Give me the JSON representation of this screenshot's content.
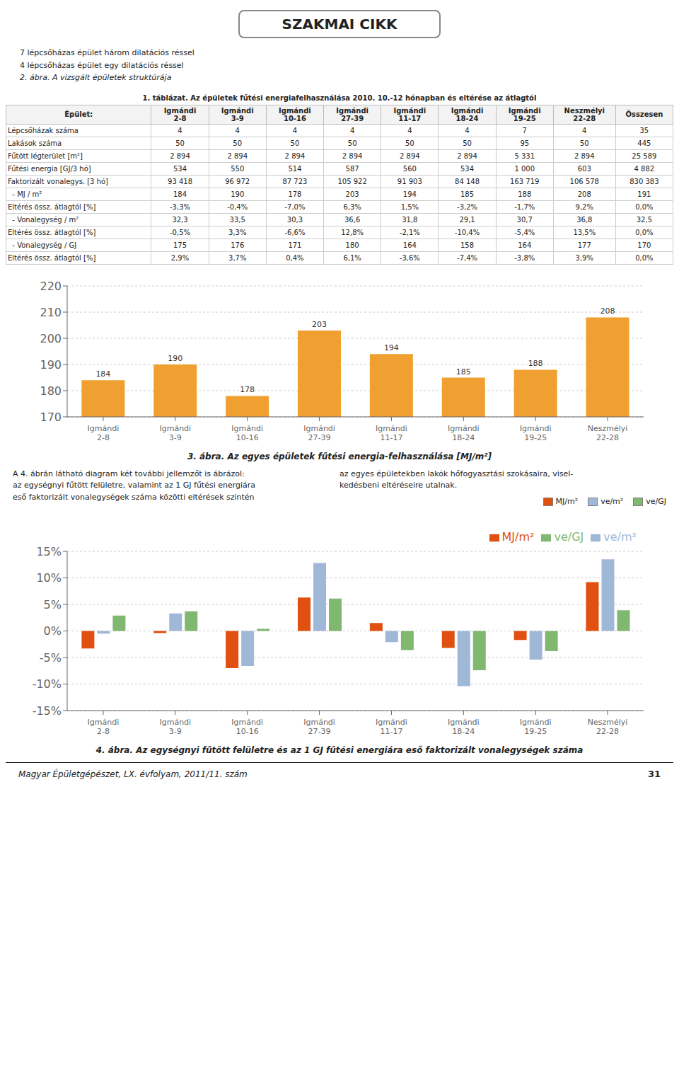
{
  "title": "SZAKMAI CIKK",
  "annotations": [
    "7 lépcsőházas épület három dilatációs réssel",
    "4 lépcsőházas épület egy dilatációs réssel",
    "2. ábra. A vizsgált épületek struktúrája",
    "A 4. ábrán látható diagram két további jellemzőt is ábrázol:\naz egységnyi fűtött felületre, valamint az 1 GJ fűtési energiára\neső faktorizált vonalegységek száma közötti eltérések szintén",
    "az egyes épületekben lakók hőfogyasztási szokásaira, visel-\nkedésbeni eltéréseire utalnak.",
    "Magyar Épületgépészet, LX. évfolyam, 2011/11. szám",
    "31"
  ],
  "chart_data": [
    {
      "type": "table",
      "title": "1. táblázat. Az épületek fűtési energiafelhasználása 2010. 10.-12 hónapban és eltérése az átlagtól",
      "columns": [
        "Épület:",
        "Igmándi\n2-8",
        "Igmándi\n3-9",
        "Igmándi\n10-16",
        "Igmándi\n27-39",
        "Igmándi\n11-17",
        "Igmándi\n18-24",
        "Igmándi\n19-25",
        "Neszmélyi\n22-28",
        "Összesen"
      ],
      "rows": [
        [
          "Lépcsőházak száma",
          "4",
          "4",
          "4",
          "4",
          "4",
          "4",
          "7",
          "4",
          "35"
        ],
        [
          "Lakások száma",
          "50",
          "50",
          "50",
          "50",
          "50",
          "50",
          "95",
          "50",
          "445"
        ],
        [
          "Fűtött légterület [m²]",
          "2 894",
          "2 894",
          "2 894",
          "2 894",
          "2 894",
          "2 894",
          "5 331",
          "2 894",
          "25 589"
        ],
        [
          "Fűtési energia [GJ/3 hó]",
          "534",
          "550",
          "514",
          "587",
          "560",
          "534",
          "1 000",
          "603",
          "4 882"
        ],
        [
          "Faktorizált vonalegys. [3 hó]",
          "93 418",
          "96 972",
          "87 723",
          "105 922",
          "91 903",
          "84 148",
          "163 719",
          "106 578",
          "830 383"
        ],
        [
          "  - MJ / m²",
          "184",
          "190",
          "178",
          "203",
          "194",
          "185",
          "188",
          "208",
          "191"
        ],
        [
          "Eltérés össz. átlagtól [%]",
          "-3,3%",
          "-0,4%",
          "-7,0%",
          "6,3%",
          "1,5%",
          "-3,2%",
          "-1,7%",
          "9,2%",
          "0,0%"
        ],
        [
          "  - Vonalegység / m²",
          "32,3",
          "33,5",
          "30,3",
          "36,6",
          "31,8",
          "29,1",
          "30,7",
          "36,8",
          "32,5"
        ],
        [
          "Eltérés össz. átlagtól [%]",
          "-0,5%",
          "3,3%",
          "-6,6%",
          "12,8%",
          "-2,1%",
          "-10,4%",
          "-5,4%",
          "13,5%",
          "0,0%"
        ],
        [
          "  - Vonalegység / GJ",
          "175",
          "176",
          "171",
          "180",
          "164",
          "158",
          "164",
          "177",
          "170"
        ],
        [
          "Eltérés össz. átlagtól [%]",
          "2,9%",
          "3,7%",
          "0,4%",
          "6,1%",
          "-3,6%",
          "-7,4%",
          "-3,8%",
          "3,9%",
          "0,0%"
        ]
      ]
    },
    {
      "type": "bar",
      "title": "3. ábra. Az egyes épületek fűtési energia-felhasználása [MJ/m²]",
      "categories": [
        "Igmándi\n2-8",
        "Igmándi\n3-9",
        "Igmándi\n10-16",
        "Igmándi\n27-39",
        "Igmándi\n11-17",
        "Igmándi\n18-24",
        "Igmándi\n19-25",
        "Neszmélyi\n22-28"
      ],
      "values": [
        184,
        190,
        178,
        203,
        194,
        185,
        188,
        208
      ],
      "color": "#f0a030",
      "ylim": [
        170,
        220
      ],
      "yticks": [
        170,
        180,
        190,
        200,
        210,
        220
      ],
      "grid": true,
      "data_labels": true
    },
    {
      "type": "bar",
      "title": "4. ábra. Az egységnyi fűtött felületre és az 1 GJ fűtési energiára eső faktorizált vonalegységek száma",
      "categories": [
        "Igmándi\n2-8",
        "Igmándi\n3-9",
        "Igmándi\n10-16",
        "Igmándi\n27-39",
        "Igmándi\n11-17",
        "Igmándi\n18-24",
        "Igmándi\n19-25",
        "Neszmélyi\n22-28"
      ],
      "series": [
        {
          "name": "MJ/m²",
          "color": "#e05010",
          "values": [
            -3.3,
            -0.4,
            -7.0,
            6.3,
            1.5,
            -3.2,
            -1.7,
            9.2
          ]
        },
        {
          "name": "ve/m²",
          "color": "#a0b8d8",
          "values": [
            -0.5,
            3.3,
            -6.6,
            12.8,
            -2.1,
            -10.4,
            -5.4,
            13.5
          ]
        },
        {
          "name": "ve/GJ",
          "color": "#80b870",
          "values": [
            2.9,
            3.7,
            0.4,
            6.1,
            -3.6,
            -7.4,
            -3.8,
            3.9
          ]
        }
      ],
      "ylim": [
        -15,
        15
      ],
      "yticks": [
        {
          "value": -15,
          "label": "-15%"
        },
        {
          "value": -10,
          "label": "-10%"
        },
        {
          "value": -5,
          "label": "-5%"
        },
        {
          "value": 0,
          "label": "0%"
        },
        {
          "value": 5,
          "label": "5%"
        },
        {
          "value": 10,
          "label": "10%"
        },
        {
          "value": 15,
          "label": "15%"
        }
      ],
      "grid": true,
      "legend": "upper right"
    }
  ]
}
